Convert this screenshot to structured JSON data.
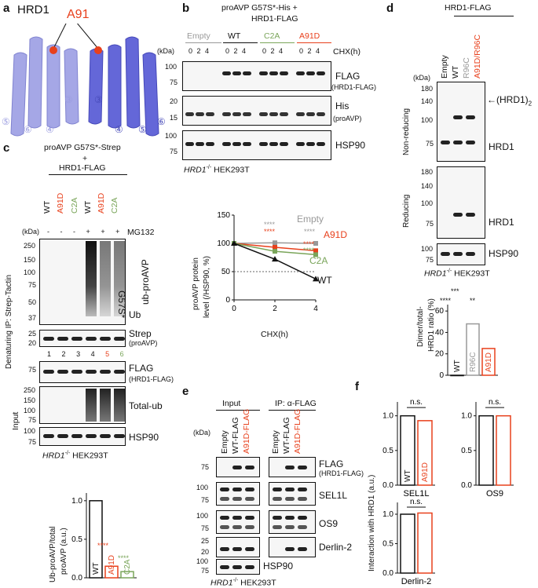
{
  "panel_a": {
    "letter": "a",
    "title": "HRD1",
    "residue": "A91",
    "helix_labels": [
      "⑤",
      "⑥",
      "④",
      "③",
      "③",
      "④",
      "⑤",
      "⑥"
    ]
  },
  "panel_b": {
    "letter": "b",
    "title": "proAVP G57S*-His +",
    "title2": "HRD1-FLAG",
    "groups": [
      "Empty",
      "WT",
      "C2A",
      "A91D"
    ],
    "cond_label": "CHX(h)",
    "times": "0 2 4",
    "kda": "(kDa)",
    "rows": [
      {
        "marks": [
          "100",
          "75"
        ],
        "label": "FLAG",
        "sub": "(HRD1-FLAG)"
      },
      {
        "marks": [
          "20",
          "15"
        ],
        "label": "His",
        "sub": "(proAVP)"
      },
      {
        "marks": [
          "100",
          "75"
        ],
        "label": "HSP90",
        "sub": ""
      }
    ],
    "cell": "HRD1",
    "cell_sup": "-/-",
    "cell2": " HEK293T"
  },
  "panel_b_chart": {
    "ylabel": "proAVP protein",
    "ylabel2": "level (/HSP90, %)",
    "xlabel": "CHX(h)",
    "sig": [
      "****",
      "****",
      "****",
      "****",
      "****"
    ]
  },
  "chart_data": {
    "type": "line",
    "x": [
      0,
      2,
      4
    ],
    "xlim": [
      0,
      4
    ],
    "ylim": [
      0,
      150
    ],
    "yticks": [
      0,
      50,
      100,
      150
    ],
    "series": [
      {
        "name": "Empty",
        "values": [
          100,
          101,
          100
        ],
        "color": "#999999"
      },
      {
        "name": "A91D",
        "values": [
          100,
          93,
          87
        ],
        "color": "#e8401c"
      },
      {
        "name": "C2A",
        "values": [
          100,
          86,
          80
        ],
        "color": "#7aa55a"
      },
      {
        "name": "WT",
        "values": [
          100,
          72,
          37
        ],
        "color": "#111111"
      }
    ]
  },
  "panel_c": {
    "letter": "c",
    "title": "proAVP G57S*-Strep",
    "plus": "+",
    "title2": "HRD1-FLAG",
    "lanes_top": [
      "WT",
      "A91D",
      "C2A",
      "WT",
      "A91D",
      "C2A"
    ],
    "mg132": "MG132",
    "signs": [
      "-",
      "-",
      "-",
      "+",
      "+",
      "+"
    ],
    "kda": "(kDa)",
    "ip_label": "Denaturing IP: Strep-Tactin",
    "input_label": "Input",
    "ip_marks": [
      "250",
      "150",
      "100",
      "75",
      "50",
      "37"
    ],
    "ub_label": "ub-proAVP",
    "g57": "G57S*",
    "ub": "Ub",
    "strep": {
      "marks": [
        "25",
        "20"
      ],
      "label": "Strep",
      "sub": "(proAVP)"
    },
    "lane_nums": [
      "1",
      "2",
      "3",
      "4",
      "5",
      "6"
    ],
    "flag": {
      "marks": [
        "75"
      ],
      "label": "FLAG",
      "sub": "(HRD1-FLAG)"
    },
    "totalub": {
      "marks": [
        "250",
        "150",
        "100",
        "75"
      ],
      "label": "Total-ub"
    },
    "hsp": {
      "marks": [
        "100",
        "75"
      ],
      "label": "HSP90"
    },
    "cell": "HRD1",
    "cell_sup": "-/-",
    "cell2": " HEK293T"
  },
  "panel_c_bar": {
    "ylabel": "Ub-proAVP/total",
    "ylabel2": "proAVP (a.u.)",
    "yticks": [
      "0.0",
      "0.5",
      "1.0"
    ],
    "bars": [
      {
        "name": "WT",
        "value": 1.0
      },
      {
        "name": "A91D",
        "value": 0.15
      },
      {
        "name": "C2A",
        "value": 0.08
      }
    ],
    "sig": [
      "****",
      "****"
    ]
  },
  "panel_d": {
    "letter": "d",
    "title": "HRD1-FLAG",
    "lanes": [
      "Empty",
      "WT",
      "R96C",
      "A91D/R96C"
    ],
    "kda": "(kDa)",
    "nonred": "Non-reducing",
    "red": "Reducing",
    "nr_marks": [
      "180",
      "140",
      "100",
      "75"
    ],
    "dimer": "(HRD1)",
    "dimer_sub": "2",
    "hrd1": "HRD1",
    "r_marks": [
      "180",
      "140",
      "100",
      "75"
    ],
    "hsp": "HSP90",
    "hsp_marks": [
      "100",
      "75"
    ],
    "cell": "HRD1",
    "cell_sup": "-/-",
    "cell2": " HEK293T"
  },
  "panel_d_bar": {
    "ylabel": "Dimer/total-",
    "ylabel2": "HRD1 ratio (%)",
    "yticks": [
      "0",
      "20",
      "40",
      "60"
    ],
    "bars": [
      {
        "name": "WT",
        "value": 0
      },
      {
        "name": "R96C",
        "value": 48
      },
      {
        "name": "A91D",
        "value": 25
      }
    ],
    "sig": [
      "****",
      "***",
      "**"
    ]
  },
  "panel_e": {
    "letter": "e",
    "input": "Input",
    "ip": "IP: α-FLAG",
    "kda": "(kDa)",
    "lanes": [
      "Empty",
      "WT-FLAG",
      "A91D-FLAG"
    ],
    "rows": [
      {
        "marks": [
          "75"
        ],
        "label": "FLAG",
        "sub": "(HRD1-FLAG)"
      },
      {
        "marks": [
          "100",
          "75"
        ],
        "label": "SEL1L",
        "sub": ""
      },
      {
        "marks": [
          "100",
          "75"
        ],
        "label": "OS9",
        "sub": ""
      },
      {
        "marks": [
          "25",
          "20"
        ],
        "label": "Derlin-2",
        "sub": ""
      },
      {
        "marks": [
          "100",
          "75"
        ],
        "label": "HSP90",
        "sub": ""
      }
    ],
    "cell": "HRD1",
    "cell_sup": "-/-",
    "cell2": " HEK293T"
  },
  "panel_f": {
    "letter": "f",
    "ylabel": "Interaction with HRD1 (a.u.)",
    "yticks": [
      "0.0",
      "0.5",
      "1.0"
    ],
    "ns": "n.s.",
    "bar_names": [
      "WT",
      "A91D"
    ],
    "charts": [
      {
        "name": "SEL1L",
        "values": [
          1.0,
          0.93
        ]
      },
      {
        "name": "OS9",
        "values": [
          1.0,
          1.0
        ]
      },
      {
        "name": "Derlin-2",
        "values": [
          1.0,
          1.02
        ]
      }
    ]
  }
}
